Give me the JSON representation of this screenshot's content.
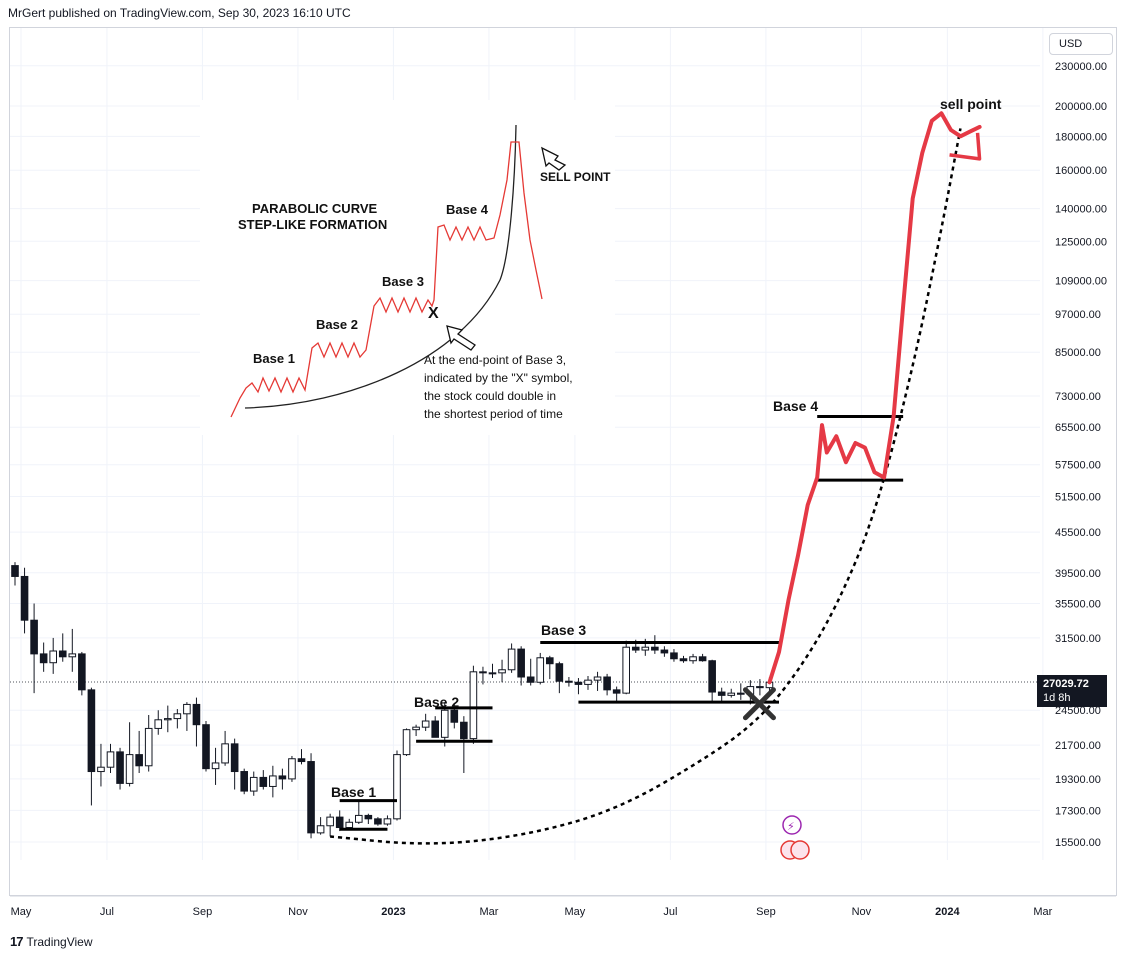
{
  "header": {
    "published": "MrGert published on TradingView.com, Sep 30, 2023 16:10 UTC"
  },
  "footer": {
    "brand": "TradingView"
  },
  "currency": "USD",
  "last_price": {
    "value": "27029.72",
    "countdown": "1d 8h"
  },
  "inset": {
    "title_line1": "PARABOLIC CURVE",
    "title_line2": "STEP-LIKE FORMATION",
    "sell_point": "SELL POINT",
    "bases": [
      "Base 1",
      "Base 2",
      "Base 3",
      "Base 4"
    ],
    "x_mark": "X",
    "note": [
      "At the end-point of Base 3,",
      "indicated by the \"X\" symbol,",
      "the stock could double in",
      "the shortest period of time"
    ]
  },
  "annotations": {
    "base1": "Base 1",
    "base2": "Base 2",
    "base3": "Base 3",
    "base4": "Base 4",
    "sell_point": "sell point"
  },
  "chart_data": {
    "type": "candlestick",
    "title": "",
    "y_scale": "log",
    "ylim": [
      14500,
      250000
    ],
    "y_ticks": [
      "230000.00",
      "200000.00",
      "180000.00",
      "160000.00",
      "140000.00",
      "125000.00",
      "109000.00",
      "97000.00",
      "85000.00",
      "73000.00",
      "65500.00",
      "57500.00",
      "51500.00",
      "45500.00",
      "39500.00",
      "35500.00",
      "31500.00",
      "24500.00",
      "21700.00",
      "19300.00",
      "17300.00",
      "15500.00"
    ],
    "x_ticks": [
      "May",
      "Jul",
      "Sep",
      "Nov",
      "2023",
      "Mar",
      "May",
      "Jul",
      "Sep",
      "Nov",
      "2024",
      "Mar"
    ],
    "x_tick_weeks": [
      0,
      9,
      19,
      29,
      39,
      49,
      58,
      68,
      78,
      88,
      97,
      107
    ],
    "candles": [
      [
        0,
        40500,
        39000,
        41000,
        37800
      ],
      [
        1,
        39000,
        33500,
        40200,
        32000
      ],
      [
        2,
        33500,
        29800,
        35500,
        26000
      ],
      [
        3,
        29800,
        28900,
        31000,
        28000
      ],
      [
        4,
        28900,
        30100,
        31500,
        27800
      ],
      [
        5,
        30100,
        29500,
        32000,
        29000
      ],
      [
        6,
        29500,
        29800,
        32500,
        28000
      ],
      [
        7,
        29800,
        26300,
        30000,
        25800
      ],
      [
        8,
        26300,
        19800,
        26500,
        17600
      ],
      [
        9,
        19800,
        20100,
        21800,
        18800
      ],
      [
        10,
        20100,
        21200,
        21800,
        19700
      ],
      [
        11,
        21200,
        19000,
        21500,
        18600
      ],
      [
        12,
        19000,
        21000,
        23500,
        18800
      ],
      [
        13,
        21000,
        20200,
        22800,
        19700
      ],
      [
        14,
        20200,
        23000,
        24100,
        19800
      ],
      [
        15,
        23000,
        23700,
        24500,
        22500
      ],
      [
        16,
        23700,
        23800,
        24900,
        22700
      ],
      [
        17,
        23800,
        24200,
        24600,
        23000
      ],
      [
        18,
        24200,
        25000,
        25200,
        22800
      ],
      [
        19,
        25000,
        23300,
        25600,
        21600
      ],
      [
        20,
        23300,
        20000,
        23600,
        19800
      ],
      [
        21,
        20000,
        20400,
        21500,
        18900
      ],
      [
        22,
        20400,
        21800,
        22800,
        20200
      ],
      [
        23,
        21800,
        19800,
        22200,
        18600
      ],
      [
        24,
        19800,
        18500,
        20000,
        18300
      ],
      [
        25,
        18500,
        19400,
        19800,
        18200
      ],
      [
        26,
        19400,
        18800,
        19900,
        18600
      ],
      [
        27,
        18800,
        19500,
        20200,
        18100
      ],
      [
        28,
        19500,
        19300,
        20000,
        18600
      ],
      [
        29,
        19300,
        20700,
        20900,
        19100
      ],
      [
        30,
        20700,
        20500,
        21400,
        20300
      ],
      [
        31,
        20500,
        16000,
        21100,
        15700
      ],
      [
        32,
        16000,
        16400,
        16900,
        15900
      ],
      [
        33,
        16400,
        16900,
        17100,
        15800
      ],
      [
        34,
        16900,
        16300,
        17300,
        16100
      ],
      [
        35,
        16300,
        16600,
        16800,
        16200
      ],
      [
        36,
        16600,
        17000,
        17900,
        16500
      ],
      [
        37,
        17000,
        16800,
        17100,
        16500
      ],
      [
        38,
        16800,
        16500,
        16900,
        16400
      ],
      [
        39,
        16500,
        16800,
        17000,
        16400
      ],
      [
        40,
        16800,
        21000,
        21300,
        16700
      ],
      [
        41,
        21000,
        22900,
        23000,
        20900
      ],
      [
        42,
        22900,
        23100,
        23300,
        22400
      ],
      [
        43,
        23100,
        23600,
        24200,
        22800
      ],
      [
        44,
        23600,
        22300,
        24000,
        22300
      ],
      [
        45,
        22300,
        24500,
        25200,
        21600
      ],
      [
        46,
        24500,
        23500,
        25100,
        23000
      ],
      [
        47,
        23500,
        22200,
        24000,
        19700
      ],
      [
        48,
        22200,
        28000,
        28600,
        21800
      ],
      [
        49,
        28000,
        27900,
        28500,
        26800
      ],
      [
        50,
        27900,
        27900,
        28800,
        27400
      ],
      [
        51,
        27900,
        28200,
        29200,
        27000
      ],
      [
        52,
        28200,
        30300,
        30900,
        27900
      ],
      [
        53,
        30300,
        27500,
        30600,
        26700
      ],
      [
        54,
        27500,
        27000,
        29300,
        26700
      ],
      [
        55,
        27000,
        29400,
        29900,
        26800
      ],
      [
        56,
        29400,
        28800,
        29600,
        27300
      ],
      [
        57,
        28800,
        27100,
        29000,
        26000
      ],
      [
        58,
        27100,
        27000,
        27500,
        26600
      ],
      [
        59,
        27000,
        26800,
        27400,
        25900
      ],
      [
        60,
        26800,
        27200,
        27600,
        26300
      ],
      [
        61,
        27200,
        27500,
        28000,
        26200
      ],
      [
        62,
        27500,
        26300,
        27800,
        25800
      ],
      [
        63,
        26300,
        26000,
        26600,
        25200
      ],
      [
        64,
        26000,
        30500,
        31200,
        25900
      ],
      [
        65,
        30500,
        30200,
        31300,
        29900
      ],
      [
        66,
        30200,
        30500,
        31400,
        29600
      ],
      [
        67,
        30500,
        30200,
        31800,
        29800
      ],
      [
        68,
        30200,
        29900,
        30600,
        29500
      ],
      [
        69,
        29900,
        29300,
        30300,
        29000
      ],
      [
        70,
        29300,
        29100,
        29600,
        28900
      ],
      [
        71,
        29100,
        29500,
        29800,
        28800
      ],
      [
        72,
        29500,
        29100,
        29800,
        29000
      ],
      [
        73,
        29100,
        26100,
        29200,
        25200
      ],
      [
        74,
        26100,
        25800,
        26500,
        25300
      ],
      [
        75,
        25800,
        26000,
        26400,
        25600
      ],
      [
        76,
        26000,
        25900,
        26900,
        25400
      ],
      [
        77,
        25900,
        26600,
        27200,
        25000
      ],
      [
        78,
        26600,
        26500,
        27300,
        25800
      ],
      [
        79,
        26500,
        27000,
        27500,
        26000
      ]
    ],
    "projection_red_path": [
      [
        79,
        27000
      ],
      [
        80,
        30000
      ],
      [
        81,
        36000
      ],
      [
        82,
        42000
      ],
      [
        83,
        50000
      ],
      [
        84,
        55000
      ],
      [
        84.5,
        66000
      ],
      [
        85,
        60000
      ],
      [
        86,
        63500
      ],
      [
        87,
        58000
      ],
      [
        88,
        62000
      ],
      [
        89,
        61000
      ],
      [
        90,
        56000
      ],
      [
        91,
        55000
      ],
      [
        92,
        68000
      ],
      [
        93,
        100000
      ],
      [
        94,
        145000
      ],
      [
        95,
        170000
      ],
      [
        96,
        190000
      ],
      [
        97,
        195000
      ],
      [
        98,
        184000
      ],
      [
        99,
        180000
      ],
      [
        100,
        183000
      ],
      [
        101,
        186000
      ]
    ],
    "projection_curve_path": [
      [
        33,
        15800
      ],
      [
        43,
        15300
      ],
      [
        53,
        15800
      ],
      [
        63,
        17300
      ],
      [
        73,
        21000
      ],
      [
        78,
        23800
      ],
      [
        82,
        28000
      ],
      [
        86,
        35000
      ],
      [
        90,
        48000
      ],
      [
        94,
        80000
      ],
      [
        97,
        130000
      ],
      [
        99,
        185000
      ]
    ],
    "levels": [
      {
        "name": "Base 1 top",
        "value": 17900,
        "from": 34,
        "to": 40
      },
      {
        "name": "Base 1 bottom",
        "value": 16200,
        "from": 34,
        "to": 39
      },
      {
        "name": "Base 2 top",
        "value": 24700,
        "from": 44,
        "to": 50
      },
      {
        "name": "Base 2 bottom",
        "value": 22000,
        "from": 42,
        "to": 50
      },
      {
        "name": "Base 3 top",
        "value": 31000,
        "from": 55,
        "to": 80
      },
      {
        "name": "Base 3 bottom",
        "value": 25200,
        "from": 59,
        "to": 80
      },
      {
        "name": "Base 4 top",
        "value": 68000,
        "from": 84,
        "to": 93
      },
      {
        "name": "Base 4 bottom",
        "value": 54500,
        "from": 84,
        "to": 93
      }
    ],
    "x_mark": {
      "week": 79,
      "value": 24200
    }
  }
}
